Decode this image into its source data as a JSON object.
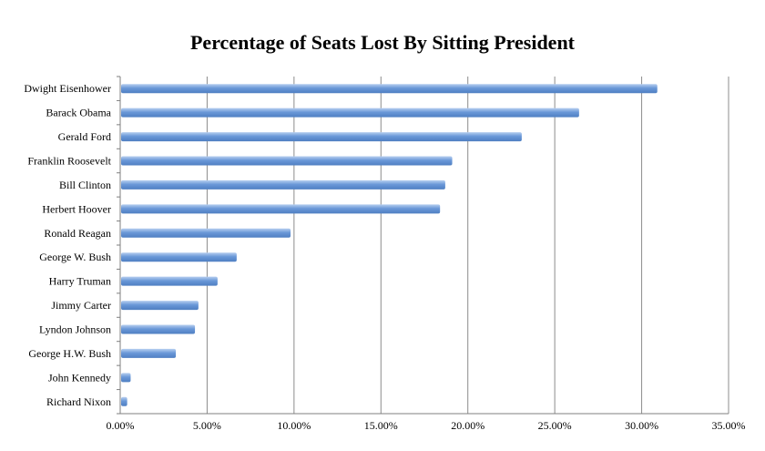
{
  "chart_data": {
    "type": "bar",
    "orientation": "horizontal",
    "title": "Percentage of Seats Lost By Sitting President",
    "categories": [
      "Dwight Eisenhower",
      "Barack Obama",
      "Gerald Ford",
      "Franklin Roosevelt",
      "Bill Clinton",
      "Herbert Hoover",
      "Ronald Reagan",
      "George W. Bush",
      "Harry Truman",
      "Jimmy Carter",
      "Lyndon Johnson",
      "George H.W. Bush",
      "John Kennedy",
      "Richard Nixon"
    ],
    "values": [
      30.9,
      26.4,
      23.1,
      19.1,
      18.7,
      18.4,
      9.8,
      6.7,
      5.6,
      4.5,
      4.3,
      3.2,
      0.6,
      0.4
    ],
    "xlim": [
      0,
      35
    ],
    "xticks": [
      0,
      5,
      10,
      15,
      20,
      25,
      30,
      35
    ],
    "xtick_labels": [
      "0.00%",
      "5.00%",
      "10.00%",
      "15.00%",
      "20.00%",
      "25.00%",
      "30.00%",
      "35.00%"
    ],
    "xlabel": "",
    "ylabel": "",
    "grid": "vertical",
    "legend": "none",
    "bar_color": "#6a98d8",
    "bar_color_light": "#b7cff0",
    "bar_color_dark": "#4f7fc2"
  }
}
